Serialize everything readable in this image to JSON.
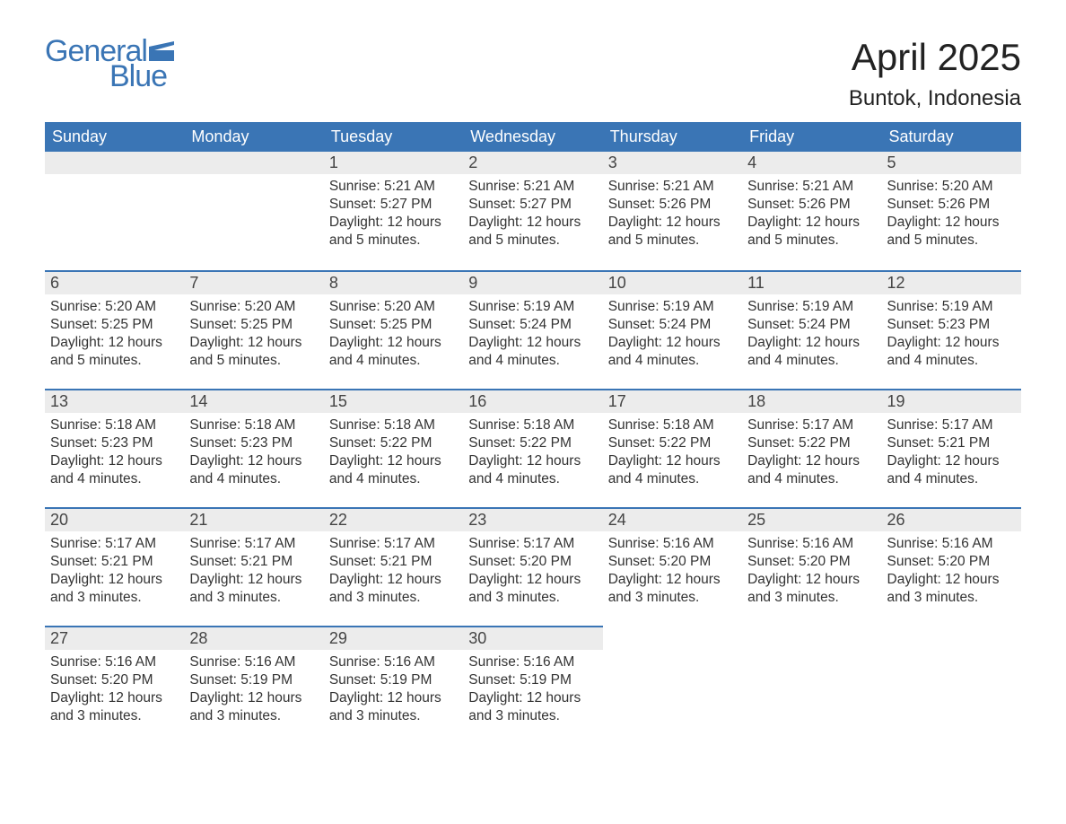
{
  "logo": {
    "text_general": "General",
    "text_blue": "Blue",
    "brand_color": "#3a75b5",
    "flag_color": "#3a75b5"
  },
  "header": {
    "month_title": "April 2025",
    "location": "Buntok, Indonesia"
  },
  "style": {
    "header_bg": "#3a75b5",
    "header_text": "#ffffff",
    "daynum_bg": "#ececec",
    "row_border": "#3a75b5",
    "body_text": "#333333",
    "page_bg": "#ffffff",
    "title_fontsize": 42,
    "location_fontsize": 24,
    "dayheader_fontsize": 18,
    "body_fontsize": 15.5
  },
  "day_headers": [
    "Sunday",
    "Monday",
    "Tuesday",
    "Wednesday",
    "Thursday",
    "Friday",
    "Saturday"
  ],
  "weeks": [
    [
      null,
      null,
      {
        "n": "1",
        "sunrise": "5:21 AM",
        "sunset": "5:27 PM",
        "daylight": "12 hours and 5 minutes."
      },
      {
        "n": "2",
        "sunrise": "5:21 AM",
        "sunset": "5:27 PM",
        "daylight": "12 hours and 5 minutes."
      },
      {
        "n": "3",
        "sunrise": "5:21 AM",
        "sunset": "5:26 PM",
        "daylight": "12 hours and 5 minutes."
      },
      {
        "n": "4",
        "sunrise": "5:21 AM",
        "sunset": "5:26 PM",
        "daylight": "12 hours and 5 minutes."
      },
      {
        "n": "5",
        "sunrise": "5:20 AM",
        "sunset": "5:26 PM",
        "daylight": "12 hours and 5 minutes."
      }
    ],
    [
      {
        "n": "6",
        "sunrise": "5:20 AM",
        "sunset": "5:25 PM",
        "daylight": "12 hours and 5 minutes."
      },
      {
        "n": "7",
        "sunrise": "5:20 AM",
        "sunset": "5:25 PM",
        "daylight": "12 hours and 5 minutes."
      },
      {
        "n": "8",
        "sunrise": "5:20 AM",
        "sunset": "5:25 PM",
        "daylight": "12 hours and 4 minutes."
      },
      {
        "n": "9",
        "sunrise": "5:19 AM",
        "sunset": "5:24 PM",
        "daylight": "12 hours and 4 minutes."
      },
      {
        "n": "10",
        "sunrise": "5:19 AM",
        "sunset": "5:24 PM",
        "daylight": "12 hours and 4 minutes."
      },
      {
        "n": "11",
        "sunrise": "5:19 AM",
        "sunset": "5:24 PM",
        "daylight": "12 hours and 4 minutes."
      },
      {
        "n": "12",
        "sunrise": "5:19 AM",
        "sunset": "5:23 PM",
        "daylight": "12 hours and 4 minutes."
      }
    ],
    [
      {
        "n": "13",
        "sunrise": "5:18 AM",
        "sunset": "5:23 PM",
        "daylight": "12 hours and 4 minutes."
      },
      {
        "n": "14",
        "sunrise": "5:18 AM",
        "sunset": "5:23 PM",
        "daylight": "12 hours and 4 minutes."
      },
      {
        "n": "15",
        "sunrise": "5:18 AM",
        "sunset": "5:22 PM",
        "daylight": "12 hours and 4 minutes."
      },
      {
        "n": "16",
        "sunrise": "5:18 AM",
        "sunset": "5:22 PM",
        "daylight": "12 hours and 4 minutes."
      },
      {
        "n": "17",
        "sunrise": "5:18 AM",
        "sunset": "5:22 PM",
        "daylight": "12 hours and 4 minutes."
      },
      {
        "n": "18",
        "sunrise": "5:17 AM",
        "sunset": "5:22 PM",
        "daylight": "12 hours and 4 minutes."
      },
      {
        "n": "19",
        "sunrise": "5:17 AM",
        "sunset": "5:21 PM",
        "daylight": "12 hours and 4 minutes."
      }
    ],
    [
      {
        "n": "20",
        "sunrise": "5:17 AM",
        "sunset": "5:21 PM",
        "daylight": "12 hours and 3 minutes."
      },
      {
        "n": "21",
        "sunrise": "5:17 AM",
        "sunset": "5:21 PM",
        "daylight": "12 hours and 3 minutes."
      },
      {
        "n": "22",
        "sunrise": "5:17 AM",
        "sunset": "5:21 PM",
        "daylight": "12 hours and 3 minutes."
      },
      {
        "n": "23",
        "sunrise": "5:17 AM",
        "sunset": "5:20 PM",
        "daylight": "12 hours and 3 minutes."
      },
      {
        "n": "24",
        "sunrise": "5:16 AM",
        "sunset": "5:20 PM",
        "daylight": "12 hours and 3 minutes."
      },
      {
        "n": "25",
        "sunrise": "5:16 AM",
        "sunset": "5:20 PM",
        "daylight": "12 hours and 3 minutes."
      },
      {
        "n": "26",
        "sunrise": "5:16 AM",
        "sunset": "5:20 PM",
        "daylight": "12 hours and 3 minutes."
      }
    ],
    [
      {
        "n": "27",
        "sunrise": "5:16 AM",
        "sunset": "5:20 PM",
        "daylight": "12 hours and 3 minutes."
      },
      {
        "n": "28",
        "sunrise": "5:16 AM",
        "sunset": "5:19 PM",
        "daylight": "12 hours and 3 minutes."
      },
      {
        "n": "29",
        "sunrise": "5:16 AM",
        "sunset": "5:19 PM",
        "daylight": "12 hours and 3 minutes."
      },
      {
        "n": "30",
        "sunrise": "5:16 AM",
        "sunset": "5:19 PM",
        "daylight": "12 hours and 3 minutes."
      },
      null,
      null,
      null
    ]
  ],
  "labels": {
    "sunrise": "Sunrise: ",
    "sunset": "Sunset: ",
    "daylight": "Daylight: "
  }
}
